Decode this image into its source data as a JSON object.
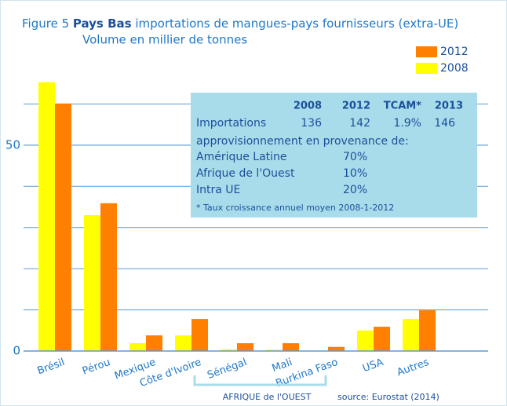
{
  "chart_data": {
    "type": "bar",
    "title_parts": [
      "Figure 5",
      "Pays Bas",
      "importations de mangues-pays fournisseurs (extra-UE)"
    ],
    "subtitle": "Volume en millier de tonnes",
    "categories": [
      "Brésil",
      "Pérou",
      "Mexique",
      "Côte d'Ivoire",
      "Sénégal",
      "Mali",
      "Burkina Faso",
      "USA",
      "Autres"
    ],
    "series": [
      {
        "name": "2008",
        "color": "#ffff00",
        "values": [
          65.3,
          33,
          1.9,
          3.8,
          0.4,
          0.3,
          0,
          5,
          7.8
        ]
      },
      {
        "name": "2012",
        "color": "#ff7f00",
        "values": [
          60.1,
          35.9,
          3.8,
          7.8,
          1.9,
          1.9,
          1,
          5.9,
          9.9
        ]
      }
    ],
    "ylim": [
      0,
      70
    ],
    "yticks": [
      0,
      50
    ],
    "grid_values": [
      10,
      20,
      30,
      40,
      50,
      60
    ],
    "grid": true,
    "legend": "top-right",
    "group_label": "AFRIQUE de l'OUEST",
    "source": "source: Eurostat (2014)",
    "info_box": {
      "header": [
        "2008",
        "2012",
        "TCAM*",
        "2013"
      ],
      "importations": {
        "label": "Importations",
        "cells": [
          "136",
          "142",
          "1.9%",
          "146"
        ]
      },
      "caption": "approvisionnement en provenance de:",
      "rows": [
        [
          "Amérique Latine",
          "70%"
        ],
        [
          "Afrique de l'Ouest",
          "10%"
        ],
        [
          "Intra UE",
          "20%"
        ]
      ],
      "note": "* Taux croissance annuel moyen 2008-1-2012"
    }
  }
}
